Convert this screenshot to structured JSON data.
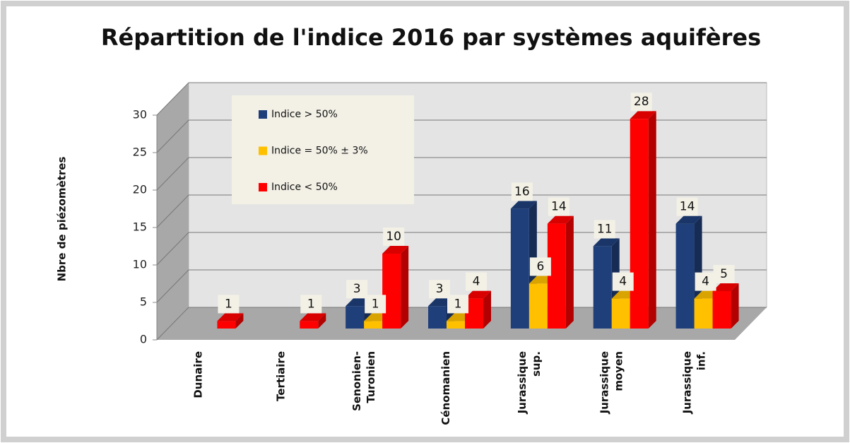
{
  "chart_data": {
    "type": "bar3d",
    "title": "Répartition de l'indice 2016 par systèmes aquifères",
    "y_label": "Nbre de piézomètres",
    "categories": [
      "Dunaire",
      "Tertiaire",
      "Senonien-\nTuronien",
      "Cénomanien",
      "Jurassique\nsup.",
      "Jurassique\nmoyen",
      "Jurassique\ninf."
    ],
    "series": [
      {
        "name": "Indice > 50%",
        "color": "#1f3f7a",
        "values": [
          null,
          null,
          3,
          3,
          16,
          11,
          14
        ]
      },
      {
        "name": "Indice = 50% ± 3%",
        "color": "#ffc000",
        "values": [
          null,
          null,
          1,
          1,
          6,
          4,
          4
        ]
      },
      {
        "name": "Indice < 50%",
        "color": "#ff0000",
        "values": [
          1,
          1,
          10,
          4,
          14,
          28,
          5
        ]
      }
    ],
    "ylim": [
      0,
      30
    ],
    "yticks": [
      0,
      5,
      10,
      15,
      20,
      25,
      30
    ],
    "grid": true
  }
}
